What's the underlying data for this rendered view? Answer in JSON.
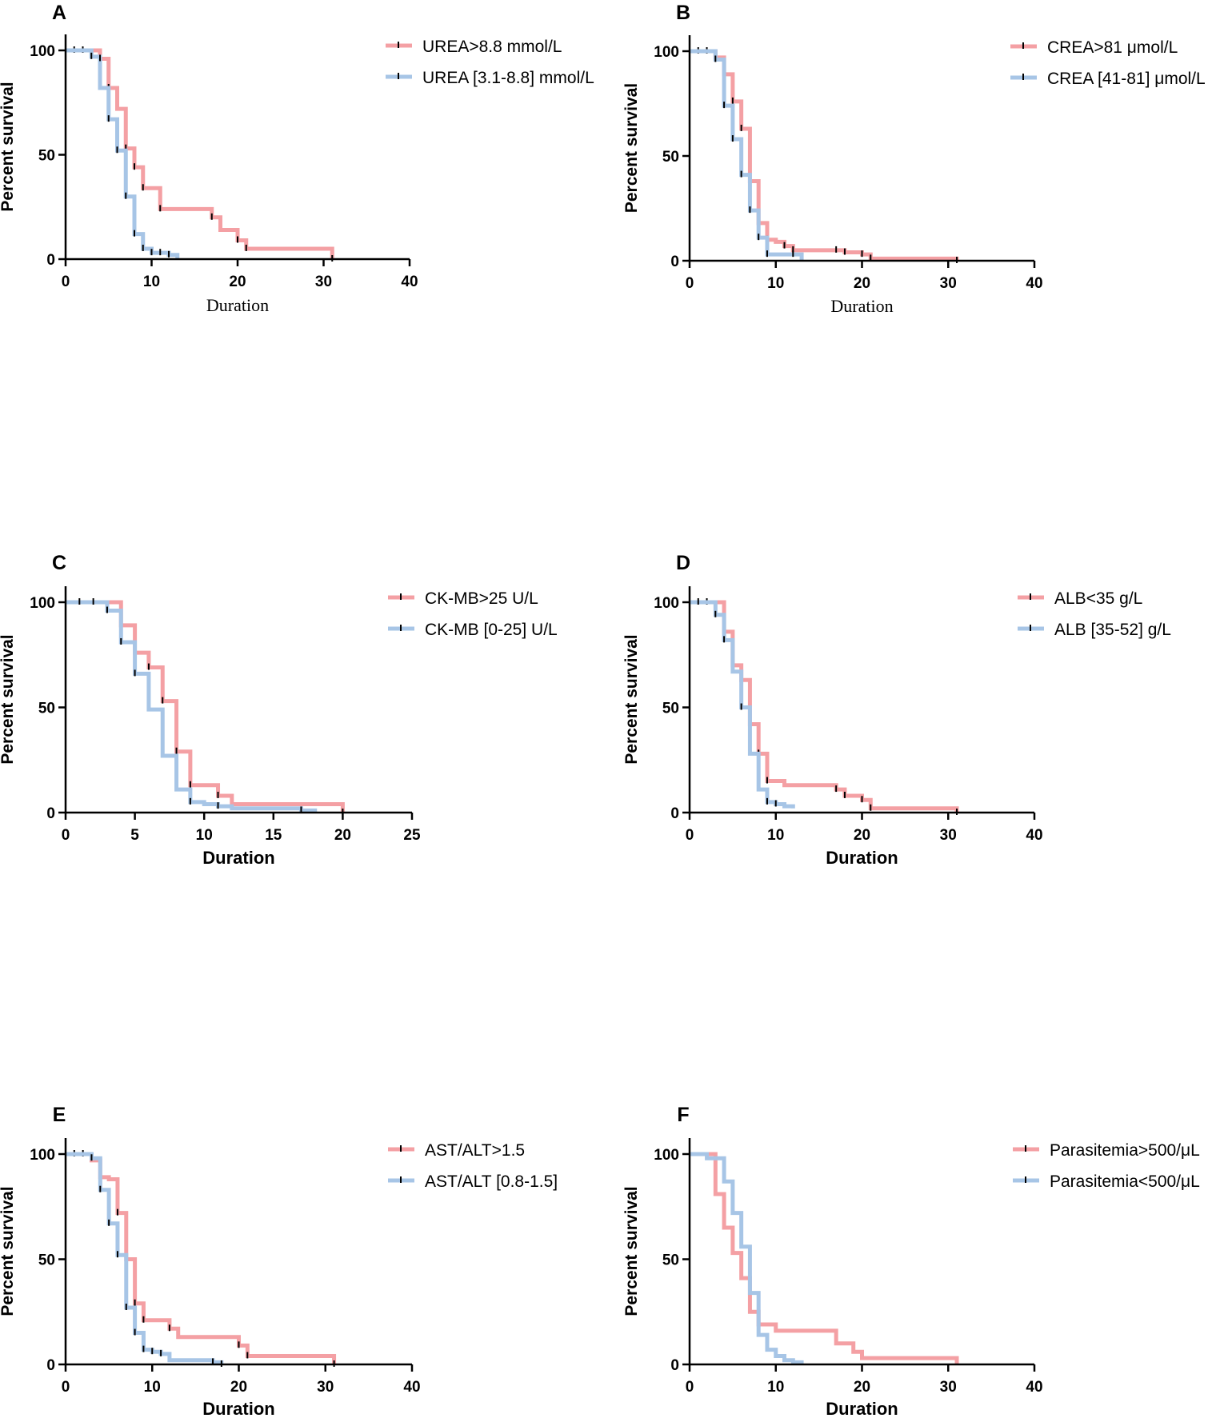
{
  "colors": {
    "red": "#f4a0a4",
    "blue": "#a7c5e6",
    "axis": "#000000"
  },
  "chart_data": [
    {
      "panel": "A",
      "type": "line",
      "ylabel": "Percent survival",
      "xlabel": "Duration",
      "xlabel_style": "serif",
      "xlim": [
        0,
        40
      ],
      "ylim": [
        0,
        100
      ],
      "xticks": [
        0,
        10,
        20,
        30,
        40
      ],
      "yticks": [
        0,
        50,
        100
      ],
      "series": [
        {
          "name": "UREA>8.8 mmol/L",
          "color": "red",
          "x": [
            0,
            4,
            5,
            6,
            7,
            8,
            9,
            11,
            17,
            18,
            20,
            21,
            31
          ],
          "y": [
            100,
            96,
            82,
            72,
            53,
            44,
            34,
            24,
            20,
            14,
            9,
            5,
            0
          ],
          "censor": [
            [
              1,
              100
            ],
            [
              2,
              100
            ],
            [
              5,
              82
            ],
            [
              7,
              53
            ],
            [
              8,
              44
            ],
            [
              9,
              34
            ],
            [
              11,
              24
            ],
            [
              17,
              20
            ],
            [
              20,
              9
            ],
            [
              21,
              5
            ],
            [
              31,
              0
            ]
          ]
        },
        {
          "name": "UREA [3.1-8.8] mmol/L",
          "color": "blue",
          "x": [
            0,
            3,
            4,
            5,
            6,
            7,
            8,
            9,
            10,
            12,
            13
          ],
          "y": [
            100,
            97,
            82,
            67,
            52,
            30,
            12,
            5,
            3,
            2,
            0
          ],
          "censor": [
            [
              3,
              97
            ],
            [
              4,
              96
            ],
            [
              5,
              67
            ],
            [
              6,
              52
            ],
            [
              7,
              30
            ],
            [
              8,
              12
            ],
            [
              9,
              5
            ],
            [
              10,
              3
            ],
            [
              11,
              3
            ],
            [
              12,
              2
            ]
          ]
        }
      ]
    },
    {
      "panel": "B",
      "type": "line",
      "ylabel": "Percent survival",
      "xlabel": "Duration",
      "xlabel_style": "serif",
      "xlim": [
        0,
        40
      ],
      "ylim": [
        0,
        100
      ],
      "xticks": [
        0,
        10,
        20,
        30,
        40
      ],
      "yticks": [
        0,
        50,
        100
      ],
      "series": [
        {
          "name": "CREA>81 μmol/L",
          "color": "red",
          "x": [
            0,
            3,
            4,
            5,
            6,
            7,
            8,
            9,
            10,
            11,
            12,
            17,
            18,
            20,
            21,
            31
          ],
          "y": [
            100,
            97,
            89,
            76,
            63,
            38,
            18,
            10,
            9,
            7,
            5,
            5,
            4,
            3,
            1,
            0
          ],
          "censor": [
            [
              1,
              100
            ],
            [
              2,
              100
            ],
            [
              4,
              89
            ],
            [
              5,
              76
            ],
            [
              6,
              63
            ],
            [
              7,
              38
            ],
            [
              8,
              18
            ],
            [
              9,
              10
            ],
            [
              11,
              7
            ],
            [
              12,
              5
            ],
            [
              17,
              5
            ],
            [
              18,
              4
            ],
            [
              20,
              3
            ],
            [
              21,
              1
            ],
            [
              31,
              0
            ]
          ]
        },
        {
          "name": "CREA [41-81] μmol/L",
          "color": "blue",
          "x": [
            0,
            3,
            4,
            5,
            6,
            7,
            8,
            9,
            12,
            13
          ],
          "y": [
            100,
            96,
            74,
            58,
            41,
            24,
            11,
            3,
            3,
            0
          ],
          "censor": [
            [
              3,
              96
            ],
            [
              4,
              74
            ],
            [
              5,
              58
            ],
            [
              6,
              41
            ],
            [
              7,
              24
            ],
            [
              8,
              11
            ],
            [
              9,
              3
            ],
            [
              12,
              3
            ]
          ]
        }
      ]
    },
    {
      "panel": "C",
      "type": "line",
      "ylabel": "Percent survival",
      "xlabel": "Duration",
      "xlabel_style": "bold",
      "xlim": [
        0,
        25
      ],
      "ylim": [
        0,
        100
      ],
      "xticks": [
        0,
        5,
        10,
        15,
        20,
        25
      ],
      "yticks": [
        0,
        50,
        100
      ],
      "series": [
        {
          "name": "CK-MB>25 U/L",
          "color": "red",
          "x": [
            0,
            4,
            5,
            6,
            7,
            8,
            9,
            11,
            12,
            20
          ],
          "y": [
            100,
            89,
            76,
            69,
            53,
            29,
            13,
            8,
            4,
            0
          ],
          "censor": [
            [
              4,
              89
            ],
            [
              5,
              76
            ],
            [
              6,
              69
            ],
            [
              7,
              53
            ],
            [
              8,
              29
            ],
            [
              9,
              13
            ],
            [
              11,
              8
            ],
            [
              20,
              0
            ]
          ]
        },
        {
          "name": "CK-MB [0-25] U/L",
          "color": "blue",
          "x": [
            0,
            3,
            4,
            5,
            6,
            7,
            8,
            9,
            10,
            11,
            12,
            17,
            18
          ],
          "y": [
            100,
            96,
            81,
            66,
            49,
            27,
            11,
            5,
            4,
            3,
            2,
            1,
            0
          ],
          "censor": [
            [
              1,
              100
            ],
            [
              2,
              100
            ],
            [
              3,
              96
            ],
            [
              4,
              81
            ],
            [
              5,
              66
            ],
            [
              9,
              5
            ],
            [
              11,
              3
            ],
            [
              17,
              1
            ]
          ]
        }
      ]
    },
    {
      "panel": "D",
      "type": "line",
      "ylabel": "Percent survival",
      "xlabel": "Duration",
      "xlabel_style": "bold",
      "xlim": [
        0,
        40
      ],
      "ylim": [
        0,
        100
      ],
      "xticks": [
        0,
        10,
        20,
        30,
        40
      ],
      "yticks": [
        0,
        50,
        100
      ],
      "series": [
        {
          "name": "ALB<35 g/L",
          "color": "red",
          "x": [
            0,
            4,
            5,
            6,
            7,
            8,
            9,
            11,
            17,
            18,
            20,
            21,
            31
          ],
          "y": [
            100,
            86,
            70,
            63,
            42,
            28,
            15,
            13,
            11,
            8,
            6,
            2,
            0
          ],
          "censor": [
            [
              2,
              100
            ],
            [
              4,
              86
            ],
            [
              5,
              70
            ],
            [
              6,
              63
            ],
            [
              7,
              42
            ],
            [
              8,
              28
            ],
            [
              9,
              15
            ],
            [
              17,
              11
            ],
            [
              18,
              8
            ],
            [
              20,
              6
            ],
            [
              21,
              2
            ],
            [
              31,
              0
            ]
          ]
        },
        {
          "name": "ALB [35-52] g/L",
          "color": "blue",
          "x": [
            0,
            3,
            4,
            5,
            6,
            7,
            8,
            9,
            10,
            11,
            12
          ],
          "y": [
            100,
            94,
            82,
            67,
            50,
            28,
            11,
            5,
            4,
            3,
            2
          ],
          "censor": [
            [
              1,
              100
            ],
            [
              3,
              94
            ],
            [
              4,
              82
            ],
            [
              6,
              50
            ],
            [
              9,
              5
            ],
            [
              10,
              4
            ]
          ]
        }
      ]
    },
    {
      "panel": "E",
      "type": "line",
      "ylabel": "Percent survival",
      "xlabel": "Duration",
      "xlabel_style": "bold",
      "xlim": [
        0,
        40
      ],
      "ylim": [
        0,
        100
      ],
      "xticks": [
        0,
        10,
        20,
        30,
        40
      ],
      "yticks": [
        0,
        50,
        100
      ],
      "series": [
        {
          "name": "AST/ALT>1.5",
          "color": "red",
          "x": [
            0,
            3,
            4,
            5,
            6,
            7,
            8,
            9,
            12,
            13,
            20,
            21,
            31
          ],
          "y": [
            100,
            97,
            89,
            88,
            72,
            50,
            29,
            21,
            17,
            13,
            9,
            4,
            0
          ],
          "censor": [
            [
              1,
              100
            ],
            [
              2,
              100
            ],
            [
              4,
              89
            ],
            [
              6,
              72
            ],
            [
              7,
              50
            ],
            [
              8,
              29
            ],
            [
              9,
              21
            ],
            [
              12,
              17
            ],
            [
              20,
              9
            ],
            [
              21,
              4
            ],
            [
              31,
              0
            ]
          ]
        },
        {
          "name": "AST/ALT [0.8-1.5]",
          "color": "blue",
          "x": [
            0,
            3,
            4,
            5,
            6,
            7,
            8,
            9,
            10,
            11,
            12,
            17,
            18
          ],
          "y": [
            100,
            98,
            83,
            67,
            52,
            27,
            15,
            7,
            6,
            5,
            2,
            1,
            0
          ],
          "censor": [
            [
              3,
              98
            ],
            [
              4,
              83
            ],
            [
              5,
              67
            ],
            [
              6,
              52
            ],
            [
              7,
              27
            ],
            [
              8,
              15
            ],
            [
              9,
              7
            ],
            [
              10,
              6
            ],
            [
              11,
              5
            ],
            [
              17,
              1
            ],
            [
              18,
              0
            ]
          ]
        }
      ]
    },
    {
      "panel": "F",
      "type": "line",
      "ylabel": "Percent survival",
      "xlabel": "Duration",
      "xlabel_style": "bold",
      "xlim": [
        0,
        40
      ],
      "ylim": [
        0,
        100
      ],
      "xticks": [
        0,
        10,
        20,
        30,
        40
      ],
      "yticks": [
        0,
        50,
        100
      ],
      "series": [
        {
          "name": "Parasitemia>500/μL",
          "color": "red",
          "x": [
            0,
            3,
            4,
            5,
            6,
            7,
            8,
            10,
            17,
            19,
            20,
            31
          ],
          "y": [
            100,
            81,
            65,
            53,
            41,
            25,
            19,
            16,
            10,
            6,
            3,
            0
          ],
          "censor": []
        },
        {
          "name": "Parasitemia<500/μL",
          "color": "blue",
          "x": [
            0,
            2,
            4,
            5,
            6,
            7,
            8,
            9,
            10,
            11,
            12,
            13
          ],
          "y": [
            100,
            98,
            87,
            72,
            56,
            34,
            14,
            7,
            4,
            2,
            1,
            0
          ],
          "censor": []
        }
      ]
    }
  ]
}
